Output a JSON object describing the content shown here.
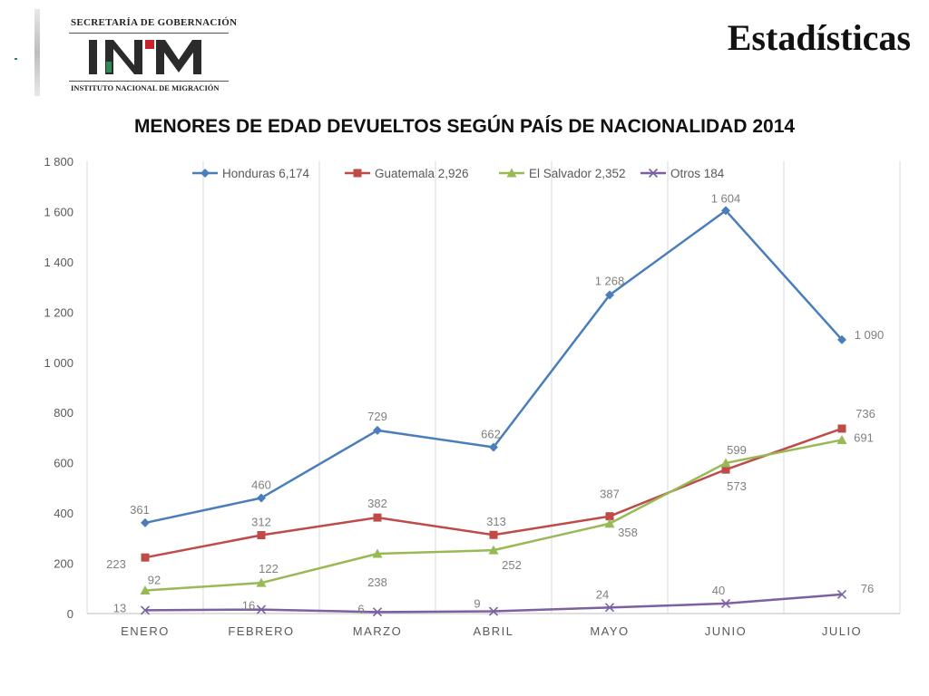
{
  "logo": {
    "top_text": "SECRETARÍA DE GOBERNACIÓN",
    "mark_text": "INM",
    "bottom_text": "INSTITUTO NACIONAL DE MIGRACIÓN"
  },
  "header": {
    "title": "Estadísticas"
  },
  "chart_data": {
    "type": "line",
    "title": "MENORES DE EDAD DEVUELTOS SEGÚN PAÍS DE NACIONALIDAD 2014",
    "xlabel": "",
    "ylabel": "",
    "categories": [
      "ENERO",
      "FEBRERO",
      "MARZO",
      "ABRIL",
      "MAYO",
      "JUNIO",
      "JULIO"
    ],
    "ylim": [
      0,
      1800
    ],
    "yticks": [
      0,
      200,
      400,
      600,
      800,
      1000,
      1200,
      1400,
      1600,
      1800
    ],
    "ytick_labels": [
      "0",
      "200",
      "400",
      "600",
      "800",
      "1 000",
      "1 200",
      "1 400",
      "1 600",
      "1 800"
    ],
    "grid": "vertical",
    "legend_position": "top",
    "series": [
      {
        "name": "Honduras 6,174",
        "color": "#4a7ebb",
        "marker": "diamond",
        "values": [
          361,
          460,
          729,
          662,
          1268,
          1604,
          1090
        ],
        "labels": [
          "361",
          "460",
          "729",
          "662",
          "1 268",
          "1 604",
          "1 090"
        ]
      },
      {
        "name": "Guatemala 2,926",
        "color": "#be4b48",
        "marker": "square",
        "values": [
          223,
          312,
          382,
          313,
          387,
          573,
          736
        ],
        "labels": [
          "223",
          "312",
          "382",
          "313",
          "387",
          "573",
          "736"
        ]
      },
      {
        "name": "El Salvador 2,352",
        "color": "#98b954",
        "marker": "triangle",
        "values": [
          92,
          122,
          238,
          252,
          358,
          599,
          691
        ],
        "labels": [
          "92",
          "122",
          "238",
          "252",
          "358",
          "599",
          "691"
        ]
      },
      {
        "name": "Otros 184",
        "color": "#7d60a0",
        "marker": "x",
        "values": [
          13,
          16,
          6,
          9,
          24,
          40,
          76
        ],
        "labels": [
          "13",
          "16",
          "6",
          "9",
          "24",
          "40",
          "76"
        ]
      }
    ]
  }
}
